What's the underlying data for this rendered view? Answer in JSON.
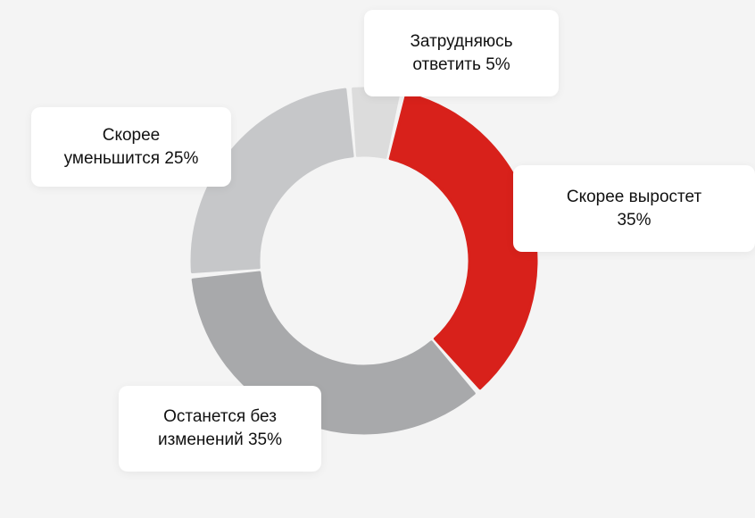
{
  "chart_data": {
    "type": "pie",
    "variant": "donut",
    "slices": [
      {
        "label_line1": "Скорее выростет",
        "label_line2": "35%",
        "value": 35,
        "color": "#d8211b"
      },
      {
        "label_line1": "Останется без",
        "label_line2": "изменений 35%",
        "value": 35,
        "color": "#a8a9ab"
      },
      {
        "label_line1": "Скорее",
        "label_line2": "уменьшится 25%",
        "value": 25,
        "color": "#c6c7c9"
      },
      {
        "label_line1": "Затрудняюсь",
        "label_line2": "ответить 5%",
        "value": 5,
        "color": "#dcdcdc"
      }
    ]
  }
}
